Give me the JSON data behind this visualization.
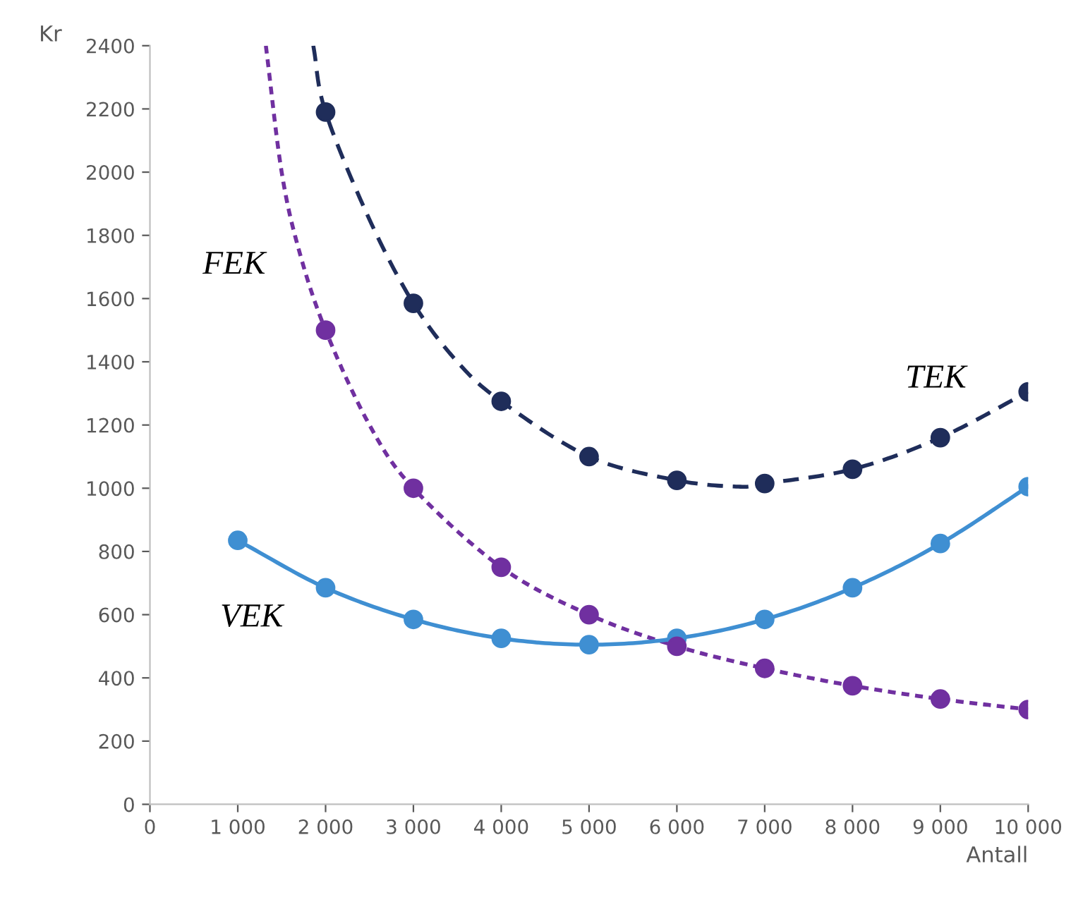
{
  "chart_data": {
    "type": "line",
    "xlabel": "Antall",
    "ylabel": "Kr",
    "xlim": [
      0,
      10000
    ],
    "ylim": [
      0,
      2400
    ],
    "xticks": [
      0,
      {
        "value": 1000,
        "label": "1 000"
      },
      {
        "value": 2000,
        "label": "2 000"
      },
      {
        "value": 3000,
        "label": "3 000"
      },
      {
        "value": 4000,
        "label": "4 000"
      },
      {
        "value": 5000,
        "label": "5 000"
      },
      {
        "value": 6000,
        "label": "6 000"
      },
      {
        "value": 7000,
        "label": "7 000"
      },
      {
        "value": 8000,
        "label": "8 000"
      },
      {
        "value": 9000,
        "label": "9 000"
      },
      {
        "value": 10000,
        "label": "10 000"
      }
    ],
    "yticks": [
      0,
      200,
      400,
      600,
      800,
      1000,
      1200,
      1400,
      1600,
      1800,
      2000,
      2200,
      2400
    ],
    "grid": false,
    "legend": false,
    "series": [
      {
        "name": "FEK",
        "color": "#7030a0",
        "line_style": "dotted",
        "marker": "none",
        "x": [
          1320,
          1500,
          1700,
          2000,
          2500,
          3000,
          4000,
          5000,
          6000,
          7000,
          8000,
          9000,
          10000
        ],
        "values": [
          2400,
          2000,
          1750,
          1500,
          1200,
          1000,
          750,
          600,
          500,
          430,
          375,
          333,
          300
        ]
      },
      {
        "type": "scatter",
        "color": "#7030a0",
        "marker": "circle",
        "x": [
          2000,
          3000,
          4000,
          5000,
          6000,
          7000,
          8000,
          9000,
          10000
        ],
        "values": [
          1500,
          1000,
          750,
          600,
          500,
          430,
          375,
          333,
          300
        ]
      },
      {
        "name": "TEK",
        "color": "#1f2d5a",
        "line_style": "dashed",
        "marker": "none",
        "x": [
          1860,
          2000,
          2500,
          3000,
          3500,
          4000,
          5000,
          6000,
          6700,
          7000,
          8000,
          9000,
          10000
        ],
        "values": [
          2400,
          2190,
          1850,
          1585,
          1400,
          1275,
          1100,
          1025,
          1005,
          1015,
          1060,
          1160,
          1305
        ]
      },
      {
        "type": "scatter",
        "color": "#1f2d5a",
        "marker": "circle",
        "x": [
          2000,
          3000,
          4000,
          5000,
          6000,
          7000,
          8000,
          9000,
          10000
        ],
        "values": [
          2190,
          1585,
          1275,
          1100,
          1025,
          1015,
          1060,
          1160,
          1305
        ]
      },
      {
        "name": "VEK",
        "color": "#3f8fd2",
        "line_style": "solid",
        "marker": "circle",
        "x": [
          1000,
          2000,
          3000,
          4000,
          5000,
          6000,
          7000,
          8000,
          9000,
          10000
        ],
        "values": [
          835,
          685,
          585,
          525,
          505,
          525,
          585,
          685,
          825,
          1005
        ]
      }
    ]
  }
}
